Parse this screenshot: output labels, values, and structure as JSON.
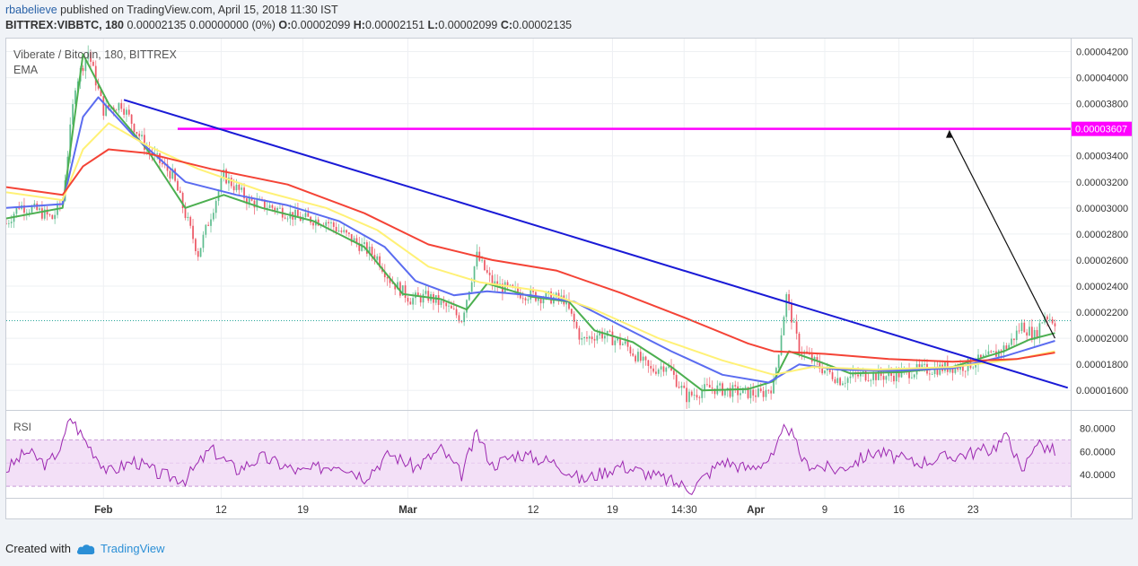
{
  "header": {
    "author": "rbabelieve",
    "published_text": "published on TradingView.com, April 15, 2018 11:30 IST",
    "symbol_line": "BITTREX:VIBBTC, 180",
    "ohlc_text": "0.00002135 0.00000000 (0%)",
    "open_label": "O:",
    "open": "0.00002099",
    "high_label": "H:",
    "high": "0.00002151",
    "low_label": "L:",
    "low": "0.00002099",
    "close_label": "C:",
    "close": "0.00002135"
  },
  "legend": {
    "title": "Viberate / Bitcoin, 180, BITTREX",
    "indicator": "EMA",
    "rsi_label": "RSI"
  },
  "footer": {
    "created_with": "Created with",
    "brand": "TradingView"
  },
  "colors": {
    "up": "#53b987",
    "down": "#eb4d5c",
    "ema_fast": "#4caf50",
    "ema_mid": "#5b6cf0",
    "ema_slow": "#fff176",
    "ema_long": "#f44336",
    "trendline": "#1a1ad6",
    "resistance": "#ff00ff",
    "rsi": "#9c27b0",
    "rsi_band": "#f3e0f7"
  },
  "chart_data": {
    "type": "line",
    "title": "Viberate / Bitcoin, 180, BITTREX",
    "price_axis": {
      "ylim": [
        1.45e-05,
        4.3e-05
      ],
      "ticks": [
        "0.00004200",
        "0.00004000",
        "0.00003800",
        "0.00003600",
        "0.00003400",
        "0.00003200",
        "0.00003000",
        "0.00002800",
        "0.00002600",
        "0.00002400",
        "0.00002200",
        "0.00002000",
        "0.00001800",
        "0.00001600"
      ]
    },
    "time_axis": {
      "ticks": [
        "Feb",
        "12",
        "19",
        "Mar",
        "12",
        "19",
        "14:30",
        "Apr",
        "9",
        "16",
        "23"
      ]
    },
    "price_series": [
      {
        "t": 0,
        "v": 2.88e-05
      },
      {
        "t": 5,
        "v": 3.02e-05
      },
      {
        "t": 12,
        "v": 2.98e-05
      },
      {
        "t": 18,
        "v": 2.92e-05
      },
      {
        "t": 22,
        "v": 3.06e-05
      },
      {
        "t": 27,
        "v": 3.95e-05
      },
      {
        "t": 32,
        "v": 4.2e-05
      },
      {
        "t": 38,
        "v": 3.75e-05
      },
      {
        "t": 45,
        "v": 3.8e-05
      },
      {
        "t": 55,
        "v": 3.45e-05
      },
      {
        "t": 65,
        "v": 3.25e-05
      },
      {
        "t": 75,
        "v": 2.65e-05
      },
      {
        "t": 85,
        "v": 3.25e-05
      },
      {
        "t": 95,
        "v": 3.05e-05
      },
      {
        "t": 105,
        "v": 3e-05
      },
      {
        "t": 115,
        "v": 2.92e-05
      },
      {
        "t": 125,
        "v": 2.9e-05
      },
      {
        "t": 135,
        "v": 2.76e-05
      },
      {
        "t": 145,
        "v": 2.62e-05
      },
      {
        "t": 150,
        "v": 2.45e-05
      },
      {
        "t": 158,
        "v": 2.3e-05
      },
      {
        "t": 165,
        "v": 2.32e-05
      },
      {
        "t": 172,
        "v": 2.24e-05
      },
      {
        "t": 178,
        "v": 2.15e-05
      },
      {
        "t": 184,
        "v": 2.63e-05
      },
      {
        "t": 190,
        "v": 2.42e-05
      },
      {
        "t": 198,
        "v": 2.36e-05
      },
      {
        "t": 208,
        "v": 2.32e-05
      },
      {
        "t": 218,
        "v": 2.3e-05
      },
      {
        "t": 225,
        "v": 1.98e-05
      },
      {
        "t": 232,
        "v": 2.04e-05
      },
      {
        "t": 242,
        "v": 1.95e-05
      },
      {
        "t": 252,
        "v": 1.75e-05
      },
      {
        "t": 258,
        "v": 1.8e-05
      },
      {
        "t": 266,
        "v": 1.55e-05
      },
      {
        "t": 275,
        "v": 1.62e-05
      },
      {
        "t": 285,
        "v": 1.59e-05
      },
      {
        "t": 295,
        "v": 1.57e-05
      },
      {
        "t": 300,
        "v": 1.64e-05
      },
      {
        "t": 305,
        "v": 2.32e-05
      },
      {
        "t": 310,
        "v": 1.92e-05
      },
      {
        "t": 318,
        "v": 1.78e-05
      },
      {
        "t": 326,
        "v": 1.68e-05
      },
      {
        "t": 335,
        "v": 1.72e-05
      },
      {
        "t": 345,
        "v": 1.71e-05
      },
      {
        "t": 355,
        "v": 1.75e-05
      },
      {
        "t": 365,
        "v": 1.77e-05
      },
      {
        "t": 375,
        "v": 1.79e-05
      },
      {
        "t": 385,
        "v": 1.86e-05
      },
      {
        "t": 392,
        "v": 1.95e-05
      },
      {
        "t": 397,
        "v": 2.1e-05
      },
      {
        "t": 402,
        "v": 2.02e-05
      },
      {
        "t": 406,
        "v": 2.18e-05
      },
      {
        "t": 410,
        "v": 2.13e-05
      }
    ],
    "ema_series": [
      {
        "name": "",
        "color": "#4caf50",
        "values": [
          {
            "t": 0,
            "v": 2.92e-05
          },
          {
            "t": 22,
            "v": 3e-05
          },
          {
            "t": 30,
            "v": 4.18e-05
          },
          {
            "t": 40,
            "v": 3.8e-05
          },
          {
            "t": 55,
            "v": 3.45e-05
          },
          {
            "t": 70,
            "v": 3e-05
          },
          {
            "t": 85,
            "v": 3.1e-05
          },
          {
            "t": 100,
            "v": 3e-05
          },
          {
            "t": 120,
            "v": 2.9e-05
          },
          {
            "t": 140,
            "v": 2.7e-05
          },
          {
            "t": 155,
            "v": 2.34e-05
          },
          {
            "t": 170,
            "v": 2.3e-05
          },
          {
            "t": 180,
            "v": 2.22e-05
          },
          {
            "t": 188,
            "v": 2.42e-05
          },
          {
            "t": 205,
            "v": 2.32e-05
          },
          {
            "t": 220,
            "v": 2.28e-05
          },
          {
            "t": 230,
            "v": 2.06e-05
          },
          {
            "t": 245,
            "v": 1.97e-05
          },
          {
            "t": 260,
            "v": 1.78e-05
          },
          {
            "t": 272,
            "v": 1.6e-05
          },
          {
            "t": 290,
            "v": 1.61e-05
          },
          {
            "t": 300,
            "v": 1.67e-05
          },
          {
            "t": 306,
            "v": 1.9e-05
          },
          {
            "t": 318,
            "v": 1.82e-05
          },
          {
            "t": 330,
            "v": 1.73e-05
          },
          {
            "t": 350,
            "v": 1.74e-05
          },
          {
            "t": 370,
            "v": 1.78e-05
          },
          {
            "t": 390,
            "v": 1.9e-05
          },
          {
            "t": 400,
            "v": 1.99e-05
          },
          {
            "t": 410,
            "v": 2.04e-05
          }
        ]
      },
      {
        "name": "",
        "color": "#5b6cf0",
        "values": [
          {
            "t": 0,
            "v": 3e-05
          },
          {
            "t": 22,
            "v": 3.03e-05
          },
          {
            "t": 30,
            "v": 3.7e-05
          },
          {
            "t": 36,
            "v": 3.85e-05
          },
          {
            "t": 50,
            "v": 3.55e-05
          },
          {
            "t": 70,
            "v": 3.2e-05
          },
          {
            "t": 90,
            "v": 3.1e-05
          },
          {
            "t": 110,
            "v": 3.02e-05
          },
          {
            "t": 130,
            "v": 2.9e-05
          },
          {
            "t": 148,
            "v": 2.7e-05
          },
          {
            "t": 160,
            "v": 2.44e-05
          },
          {
            "t": 175,
            "v": 2.33e-05
          },
          {
            "t": 188,
            "v": 2.36e-05
          },
          {
            "t": 205,
            "v": 2.33e-05
          },
          {
            "t": 222,
            "v": 2.28e-05
          },
          {
            "t": 240,
            "v": 2.1e-05
          },
          {
            "t": 260,
            "v": 1.9e-05
          },
          {
            "t": 280,
            "v": 1.72e-05
          },
          {
            "t": 298,
            "v": 1.66e-05
          },
          {
            "t": 310,
            "v": 1.8e-05
          },
          {
            "t": 325,
            "v": 1.76e-05
          },
          {
            "t": 345,
            "v": 1.75e-05
          },
          {
            "t": 370,
            "v": 1.77e-05
          },
          {
            "t": 390,
            "v": 1.86e-05
          },
          {
            "t": 410,
            "v": 1.98e-05
          }
        ]
      },
      {
        "name": "",
        "color": "#fff176",
        "values": [
          {
            "t": 0,
            "v": 3.12e-05
          },
          {
            "t": 22,
            "v": 3.06e-05
          },
          {
            "t": 30,
            "v": 3.45e-05
          },
          {
            "t": 40,
            "v": 3.65e-05
          },
          {
            "t": 55,
            "v": 3.48e-05
          },
          {
            "t": 75,
            "v": 3.3e-05
          },
          {
            "t": 100,
            "v": 3.13e-05
          },
          {
            "t": 125,
            "v": 3e-05
          },
          {
            "t": 145,
            "v": 2.83e-05
          },
          {
            "t": 165,
            "v": 2.55e-05
          },
          {
            "t": 185,
            "v": 2.43e-05
          },
          {
            "t": 210,
            "v": 2.36e-05
          },
          {
            "t": 230,
            "v": 2.22e-05
          },
          {
            "t": 255,
            "v": 2e-05
          },
          {
            "t": 280,
            "v": 1.83e-05
          },
          {
            "t": 300,
            "v": 1.72e-05
          },
          {
            "t": 315,
            "v": 1.78e-05
          },
          {
            "t": 340,
            "v": 1.76e-05
          },
          {
            "t": 370,
            "v": 1.78e-05
          },
          {
            "t": 395,
            "v": 1.84e-05
          },
          {
            "t": 410,
            "v": 1.9e-05
          }
        ]
      },
      {
        "name": "",
        "color": "#f44336",
        "values": [
          {
            "t": 0,
            "v": 3.16e-05
          },
          {
            "t": 22,
            "v": 3.1e-05
          },
          {
            "t": 30,
            "v": 3.32e-05
          },
          {
            "t": 40,
            "v": 3.45e-05
          },
          {
            "t": 55,
            "v": 3.42e-05
          },
          {
            "t": 80,
            "v": 3.3e-05
          },
          {
            "t": 110,
            "v": 3.18e-05
          },
          {
            "t": 140,
            "v": 2.96e-05
          },
          {
            "t": 165,
            "v": 2.72e-05
          },
          {
            "t": 190,
            "v": 2.6e-05
          },
          {
            "t": 215,
            "v": 2.52e-05
          },
          {
            "t": 240,
            "v": 2.35e-05
          },
          {
            "t": 265,
            "v": 2.16e-05
          },
          {
            "t": 290,
            "v": 1.96e-05
          },
          {
            "t": 300,
            "v": 1.9e-05
          },
          {
            "t": 320,
            "v": 1.88e-05
          },
          {
            "t": 345,
            "v": 1.84e-05
          },
          {
            "t": 370,
            "v": 1.82e-05
          },
          {
            "t": 395,
            "v": 1.84e-05
          },
          {
            "t": 410,
            "v": 1.89e-05
          }
        ]
      }
    ],
    "current_price": 2.135e-05,
    "resistance": {
      "price": 3.607e-05,
      "label": "0.00003607",
      "t_start": 67
    },
    "trendline": [
      {
        "t": 46,
        "v": 3.83e-05
      },
      {
        "t": 415,
        "v": 1.62e-05
      }
    ],
    "projection_arrow": [
      {
        "t": 410,
        "v": 2e-05
      },
      {
        "t": 355,
        "v": 3.6e-05
      }
    ],
    "rsi": {
      "ylim": [
        20,
        95
      ],
      "ticks": [
        "80.0000",
        "60.0000",
        "40.0000"
      ],
      "band": [
        30,
        70
      ],
      "values": [
        {
          "t": 0,
          "v": 44
        },
        {
          "t": 8,
          "v": 60
        },
        {
          "t": 16,
          "v": 48
        },
        {
          "t": 22,
          "v": 66
        },
        {
          "t": 25,
          "v": 90
        },
        {
          "t": 30,
          "v": 72
        },
        {
          "t": 40,
          "v": 42
        },
        {
          "t": 50,
          "v": 52
        },
        {
          "t": 60,
          "v": 40
        },
        {
          "t": 70,
          "v": 36
        },
        {
          "t": 80,
          "v": 62
        },
        {
          "t": 90,
          "v": 44
        },
        {
          "t": 100,
          "v": 55
        },
        {
          "t": 115,
          "v": 42
        },
        {
          "t": 130,
          "v": 50
        },
        {
          "t": 140,
          "v": 38
        },
        {
          "t": 150,
          "v": 58
        },
        {
          "t": 160,
          "v": 46
        },
        {
          "t": 170,
          "v": 62
        },
        {
          "t": 178,
          "v": 40
        },
        {
          "t": 184,
          "v": 76
        },
        {
          "t": 190,
          "v": 48
        },
        {
          "t": 200,
          "v": 58
        },
        {
          "t": 215,
          "v": 50
        },
        {
          "t": 225,
          "v": 35
        },
        {
          "t": 240,
          "v": 48
        },
        {
          "t": 255,
          "v": 38
        },
        {
          "t": 268,
          "v": 28
        },
        {
          "t": 280,
          "v": 52
        },
        {
          "t": 290,
          "v": 45
        },
        {
          "t": 300,
          "v": 55
        },
        {
          "t": 305,
          "v": 84
        },
        {
          "t": 312,
          "v": 50
        },
        {
          "t": 325,
          "v": 44
        },
        {
          "t": 340,
          "v": 60
        },
        {
          "t": 355,
          "v": 50
        },
        {
          "t": 370,
          "v": 56
        },
        {
          "t": 385,
          "v": 62
        },
        {
          "t": 392,
          "v": 74
        },
        {
          "t": 397,
          "v": 40
        },
        {
          "t": 402,
          "v": 68
        },
        {
          "t": 410,
          "v": 60
        }
      ]
    }
  }
}
